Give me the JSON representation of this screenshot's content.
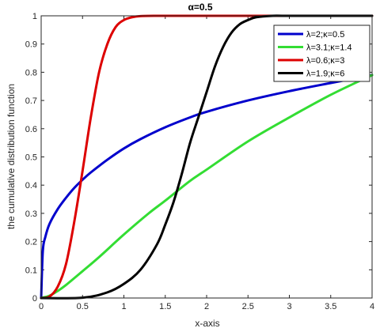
{
  "chart_data": {
    "type": "line",
    "title": "α=0.5",
    "xlabel": "x-axis",
    "ylabel": "the cumulative distribution function",
    "xlim": [
      0,
      4
    ],
    "ylim": [
      0,
      1
    ],
    "x_ticks": [
      0,
      0.5,
      1,
      1.5,
      2,
      2.5,
      3,
      3.5,
      4
    ],
    "x_tick_labels": [
      "0",
      "0.5",
      "1",
      "1.5",
      "2",
      "2.5",
      "3",
      "3.5",
      "4"
    ],
    "y_ticks": [
      0,
      0.1,
      0.2,
      0.3,
      0.4,
      0.5,
      0.6,
      0.7,
      0.8,
      0.9,
      1
    ],
    "y_tick_labels": [
      "0",
      "0.1",
      "0.2",
      "0.3",
      "0.4",
      "0.5",
      "0.6",
      "0.7",
      "0.8",
      "0.9",
      "1"
    ],
    "grid": false,
    "legend_position": "top-right",
    "series": [
      {
        "name": "λ=2;κ=0.5",
        "color": "#0000cc",
        "x": [
          0,
          0.02,
          0.05,
          0.1,
          0.2,
          0.3,
          0.4,
          0.5,
          0.6,
          0.8,
          1,
          1.2,
          1.5,
          1.8,
          2,
          2.5,
          3,
          3.5,
          4
        ],
        "y": [
          0,
          0.167,
          0.216,
          0.262,
          0.315,
          0.355,
          0.39,
          0.419,
          0.445,
          0.49,
          0.53,
          0.563,
          0.605,
          0.64,
          0.66,
          0.7,
          0.733,
          0.762,
          0.79
        ]
      },
      {
        "name": "λ=3.1;κ=1.4",
        "color": "#33dd33",
        "x": [
          0,
          0.1,
          0.2,
          0.3,
          0.5,
          0.7,
          1,
          1.3,
          1.5,
          1.8,
          2,
          2.5,
          3,
          3.5,
          4
        ],
        "y": [
          0,
          0.008,
          0.025,
          0.046,
          0.095,
          0.145,
          0.225,
          0.3,
          0.345,
          0.415,
          0.455,
          0.555,
          0.64,
          0.72,
          0.79
        ]
      },
      {
        "name": "λ=0.6;κ=3",
        "color": "#dd0000",
        "x": [
          0,
          0.1,
          0.2,
          0.3,
          0.4,
          0.5,
          0.6,
          0.7,
          0.8,
          0.9,
          1,
          1.1,
          1.2,
          1.4,
          1.6,
          2,
          4
        ],
        "y": [
          0,
          0.005,
          0.04,
          0.12,
          0.27,
          0.45,
          0.64,
          0.8,
          0.9,
          0.96,
          0.985,
          0.995,
          0.999,
          1,
          1,
          1,
          1
        ]
      },
      {
        "name": "λ=1.9;κ=6",
        "color": "#000000",
        "x": [
          0,
          0.5,
          0.8,
          1,
          1.2,
          1.4,
          1.5,
          1.6,
          1.7,
          1.8,
          1.9,
          2,
          2.1,
          2.2,
          2.3,
          2.4,
          2.5,
          2.6,
          2.8,
          3,
          4
        ],
        "y": [
          0,
          0.001,
          0.02,
          0.05,
          0.1,
          0.19,
          0.26,
          0.34,
          0.44,
          0.55,
          0.64,
          0.73,
          0.82,
          0.89,
          0.94,
          0.97,
          0.985,
          0.995,
          1,
          1,
          1
        ]
      }
    ]
  }
}
